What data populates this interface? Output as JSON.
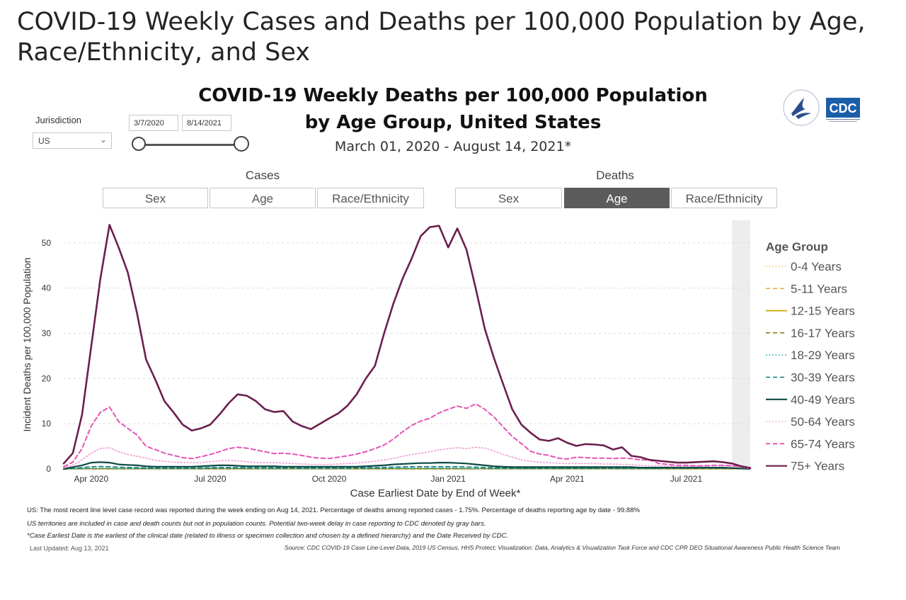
{
  "page": {
    "title_line1": "COVID-19 Weekly Cases and Deaths per 100,000 Population by Age,",
    "title_line2": "Race/Ethnicity, and Sex"
  },
  "filters": {
    "jurisdiction_label": "Jurisdiction",
    "jurisdiction_value": "US",
    "date_start": "3/7/2020",
    "date_end": "8/14/2021"
  },
  "toggles": {
    "cases_label": "Cases",
    "deaths_label": "Deaths",
    "cases_buttons": [
      "Sex",
      "Age",
      "Race/Ethnicity"
    ],
    "deaths_buttons": [
      "Sex",
      "Age",
      "Race/Ethnicity"
    ],
    "active_deaths_button": "Age"
  },
  "logos": {
    "cdc_text": "CDC"
  },
  "chart_data": {
    "type": "line",
    "title_line1": "COVID-19 Weekly Deaths per 100,000 Population",
    "title_line2": "by Age Group, United States",
    "subtitle": "March 01, 2020 - August 14, 2021*",
    "xlabel": "Case Earliest Date by End of Week*",
    "ylabel": "Incident Deaths per 100,000 Population",
    "ylim": [
      0,
      55
    ],
    "yticks": [
      0,
      10,
      20,
      30,
      40,
      50
    ],
    "x_tick_labels": [
      "Apr 2020",
      "Jul 2020",
      "Oct 2020",
      "Jan 2021",
      "Apr 2021",
      "Jul 2021"
    ],
    "x_tick_weeks": [
      3,
      16,
      29,
      42,
      55,
      68
    ],
    "week_count": 76,
    "grey_band_from_week": 73,
    "legend_title": "Age Group",
    "series": [
      {
        "name": "0-4 Years",
        "color": "#e8c34d",
        "dash": "dot",
        "width": 1.5,
        "values": [
          0,
          0.05,
          0.05,
          0.05,
          0.05,
          0.05,
          0.05,
          0.05,
          0.05,
          0.05,
          0.05,
          0.05,
          0.05,
          0.05,
          0.05,
          0.05,
          0.05,
          0.05,
          0.05,
          0.05,
          0.05,
          0.05,
          0.05,
          0.05,
          0.05,
          0.05,
          0.05,
          0.05,
          0.05,
          0.05,
          0.05,
          0.05,
          0.05,
          0.05,
          0.05,
          0.05,
          0.05,
          0.05,
          0.05,
          0.05,
          0.05,
          0.05,
          0.05,
          0.05,
          0.05,
          0.05,
          0.05,
          0.05,
          0.05,
          0.05,
          0.05,
          0.05,
          0.05,
          0.05,
          0.05,
          0.05,
          0.05,
          0.05,
          0.05,
          0.05,
          0.05,
          0.05,
          0.05,
          0.05,
          0.05,
          0.05,
          0.05,
          0.05,
          0.05,
          0.05,
          0.05,
          0.05,
          0.05,
          0.05,
          0.05,
          0
        ]
      },
      {
        "name": "5-11 Years",
        "color": "#e8a838",
        "dash": "dash",
        "width": 1.5,
        "values": [
          0,
          0.03,
          0.03,
          0.03,
          0.03,
          0.03,
          0.03,
          0.03,
          0.03,
          0.03,
          0.03,
          0.03,
          0.03,
          0.03,
          0.03,
          0.03,
          0.03,
          0.03,
          0.03,
          0.03,
          0.03,
          0.03,
          0.03,
          0.03,
          0.03,
          0.03,
          0.03,
          0.03,
          0.03,
          0.03,
          0.03,
          0.03,
          0.03,
          0.03,
          0.03,
          0.03,
          0.03,
          0.03,
          0.03,
          0.03,
          0.03,
          0.03,
          0.03,
          0.03,
          0.03,
          0.03,
          0.03,
          0.03,
          0.03,
          0.03,
          0.03,
          0.03,
          0.03,
          0.03,
          0.03,
          0.03,
          0.03,
          0.03,
          0.03,
          0.03,
          0.03,
          0.03,
          0.03,
          0.03,
          0.03,
          0.03,
          0.03,
          0.03,
          0.03,
          0.03,
          0.03,
          0.03,
          0.03,
          0.03,
          0.03,
          0
        ]
      },
      {
        "name": "12-15 Years",
        "color": "#c9a500",
        "dash": "solid",
        "width": 1.8,
        "values": [
          0,
          0.04,
          0.04,
          0.04,
          0.04,
          0.04,
          0.04,
          0.04,
          0.04,
          0.04,
          0.04,
          0.04,
          0.04,
          0.04,
          0.04,
          0.04,
          0.04,
          0.04,
          0.04,
          0.04,
          0.04,
          0.04,
          0.04,
          0.04,
          0.04,
          0.04,
          0.04,
          0.04,
          0.04,
          0.04,
          0.04,
          0.04,
          0.04,
          0.04,
          0.04,
          0.04,
          0.04,
          0.04,
          0.04,
          0.04,
          0.04,
          0.04,
          0.04,
          0.04,
          0.04,
          0.04,
          0.04,
          0.04,
          0.04,
          0.04,
          0.04,
          0.04,
          0.04,
          0.04,
          0.04,
          0.04,
          0.04,
          0.04,
          0.04,
          0.04,
          0.04,
          0.04,
          0.04,
          0.04,
          0.04,
          0.04,
          0.04,
          0.04,
          0.04,
          0.04,
          0.04,
          0.04,
          0.04,
          0.04,
          0.04,
          0
        ]
      },
      {
        "name": "16-17 Years",
        "color": "#8a6d0b",
        "dash": "dash",
        "width": 1.5,
        "values": [
          0,
          0.05,
          0.05,
          0.05,
          0.05,
          0.05,
          0.05,
          0.05,
          0.05,
          0.05,
          0.05,
          0.05,
          0.05,
          0.05,
          0.05,
          0.05,
          0.05,
          0.05,
          0.05,
          0.05,
          0.05,
          0.05,
          0.05,
          0.05,
          0.05,
          0.05,
          0.05,
          0.05,
          0.05,
          0.05,
          0.05,
          0.05,
          0.05,
          0.05,
          0.05,
          0.05,
          0.05,
          0.05,
          0.05,
          0.05,
          0.05,
          0.05,
          0.05,
          0.05,
          0.05,
          0.05,
          0.05,
          0.05,
          0.05,
          0.05,
          0.05,
          0.05,
          0.05,
          0.05,
          0.05,
          0.05,
          0.05,
          0.05,
          0.05,
          0.05,
          0.05,
          0.05,
          0.05,
          0.05,
          0.05,
          0.05,
          0.05,
          0.05,
          0.05,
          0.05,
          0.05,
          0.05,
          0.05,
          0.05,
          0.05,
          0
        ]
      },
      {
        "name": "18-29 Years",
        "color": "#1aa7a7",
        "dash": "dot",
        "width": 1.6,
        "values": [
          0,
          0.05,
          0.1,
          0.15,
          0.15,
          0.15,
          0.12,
          0.1,
          0.1,
          0.08,
          0.08,
          0.08,
          0.08,
          0.08,
          0.1,
          0.12,
          0.15,
          0.15,
          0.15,
          0.12,
          0.12,
          0.12,
          0.1,
          0.1,
          0.1,
          0.1,
          0.1,
          0.1,
          0.1,
          0.1,
          0.1,
          0.1,
          0.12,
          0.12,
          0.14,
          0.15,
          0.16,
          0.18,
          0.18,
          0.18,
          0.18,
          0.18,
          0.18,
          0.16,
          0.14,
          0.12,
          0.1,
          0.1,
          0.1,
          0.1,
          0.1,
          0.1,
          0.1,
          0.1,
          0.1,
          0.1,
          0.1,
          0.1,
          0.1,
          0.1,
          0.1,
          0.1,
          0.1,
          0.1,
          0.1,
          0.1,
          0.1,
          0.12,
          0.12,
          0.14,
          0.14,
          0.14,
          0.12,
          0.1,
          0.08,
          0
        ]
      },
      {
        "name": "30-39 Years",
        "color": "#127a7a",
        "dash": "dash",
        "width": 1.6,
        "values": [
          0,
          0.1,
          0.3,
          0.5,
          0.55,
          0.5,
          0.4,
          0.35,
          0.3,
          0.25,
          0.2,
          0.2,
          0.2,
          0.2,
          0.2,
          0.25,
          0.3,
          0.35,
          0.35,
          0.3,
          0.3,
          0.3,
          0.3,
          0.3,
          0.25,
          0.25,
          0.25,
          0.25,
          0.25,
          0.25,
          0.25,
          0.25,
          0.25,
          0.3,
          0.3,
          0.35,
          0.4,
          0.45,
          0.5,
          0.5,
          0.5,
          0.5,
          0.5,
          0.5,
          0.45,
          0.4,
          0.35,
          0.3,
          0.25,
          0.2,
          0.2,
          0.2,
          0.2,
          0.2,
          0.2,
          0.2,
          0.2,
          0.2,
          0.2,
          0.2,
          0.2,
          0.2,
          0.2,
          0.2,
          0.2,
          0.2,
          0.2,
          0.2,
          0.2,
          0.25,
          0.25,
          0.25,
          0.2,
          0.15,
          0.1,
          0
        ]
      },
      {
        "name": "40-49 Years",
        "color": "#0c4a43",
        "dash": "solid",
        "width": 2.2,
        "values": [
          0,
          0.4,
          0.8,
          1.4,
          1.5,
          1.4,
          1.0,
          0.9,
          0.8,
          0.6,
          0.5,
          0.5,
          0.5,
          0.5,
          0.5,
          0.6,
          0.7,
          0.8,
          0.8,
          0.7,
          0.6,
          0.6,
          0.6,
          0.6,
          0.5,
          0.5,
          0.5,
          0.5,
          0.5,
          0.5,
          0.5,
          0.5,
          0.5,
          0.6,
          0.7,
          0.8,
          1.0,
          1.1,
          1.2,
          1.3,
          1.3,
          1.4,
          1.4,
          1.3,
          1.2,
          1.0,
          0.8,
          0.6,
          0.5,
          0.4,
          0.4,
          0.4,
          0.4,
          0.4,
          0.4,
          0.4,
          0.4,
          0.4,
          0.4,
          0.4,
          0.4,
          0.4,
          0.4,
          0.3,
          0.3,
          0.3,
          0.3,
          0.3,
          0.3,
          0.3,
          0.3,
          0.3,
          0.3,
          0.2,
          0.1,
          0
        ]
      },
      {
        "name": "50-64 Years",
        "color": "#f0a8d8",
        "dash": "dot",
        "width": 1.8,
        "values": [
          0.3,
          0.8,
          2.0,
          3.5,
          4.5,
          4.7,
          3.8,
          3.2,
          2.8,
          2.4,
          1.9,
          1.7,
          1.5,
          1.4,
          1.4,
          1.4,
          1.6,
          1.8,
          1.9,
          1.8,
          1.6,
          1.4,
          1.4,
          1.4,
          1.3,
          1.2,
          1.1,
          1.0,
          1.0,
          1.0,
          1.1,
          1.2,
          1.3,
          1.5,
          1.7,
          2.0,
          2.3,
          2.8,
          3.2,
          3.5,
          3.8,
          4.2,
          4.5,
          4.7,
          4.5,
          4.8,
          4.6,
          4.0,
          3.2,
          2.6,
          2.0,
          1.7,
          1.5,
          1.4,
          1.3,
          1.2,
          1.2,
          1.2,
          1.2,
          1.1,
          1.1,
          1.0,
          1.0,
          0.8,
          0.7,
          0.7,
          0.6,
          0.6,
          0.6,
          0.6,
          0.7,
          0.7,
          0.7,
          0.6,
          0.4,
          0
        ]
      },
      {
        "name": "65-74 Years",
        "color": "#e455b4",
        "dash": "dash",
        "width": 2.0,
        "values": [
          0.5,
          1.5,
          4.5,
          9.5,
          12.5,
          13.7,
          10.5,
          9.0,
          7.5,
          5.0,
          4.3,
          3.5,
          3.0,
          2.5,
          2.3,
          2.7,
          3.2,
          3.8,
          4.5,
          4.8,
          4.6,
          4.2,
          3.8,
          3.4,
          3.5,
          3.3,
          3.0,
          2.6,
          2.4,
          2.3,
          2.6,
          2.9,
          3.3,
          3.8,
          4.5,
          5.3,
          6.6,
          8.2,
          9.6,
          10.6,
          11.2,
          12.4,
          13.2,
          13.9,
          13.4,
          14.4,
          13.2,
          11.5,
          9.3,
          7.2,
          5.6,
          3.9,
          3.3,
          3.0,
          2.4,
          2.2,
          2.6,
          2.5,
          2.4,
          2.4,
          2.3,
          2.4,
          2.3,
          2.0,
          2.0,
          1.2,
          1.0,
          0.8,
          0.8,
          0.7,
          0.7,
          0.8,
          0.8,
          0.7,
          0.5,
          0.1
        ]
      },
      {
        "name": "75+ Years",
        "color": "#6b1f4e",
        "dash": "solid",
        "width": 2.6,
        "values": [
          1.2,
          3.5,
          12.0,
          27.0,
          42.0,
          54.0,
          49.0,
          43.5,
          34.5,
          24.2,
          19.8,
          15.0,
          12.5,
          9.8,
          8.5,
          9.0,
          9.8,
          12.0,
          14.5,
          16.5,
          16.2,
          15.0,
          13.2,
          12.6,
          12.8,
          10.5,
          9.5,
          8.8,
          10.0,
          11.2,
          12.3,
          14.0,
          16.5,
          20.0,
          22.8,
          30.0,
          36.5,
          42.0,
          46.5,
          51.5,
          53.5,
          53.8,
          49.0,
          53.2,
          48.5,
          40.0,
          31.0,
          24.5,
          18.8,
          13.2,
          9.8,
          8.0,
          6.5,
          6.2,
          6.8,
          5.8,
          5.1,
          5.5,
          5.4,
          5.2,
          4.3,
          4.8,
          2.9,
          2.6,
          2.0,
          1.8,
          1.6,
          1.4,
          1.4,
          1.5,
          1.6,
          1.7,
          1.5,
          1.2,
          0.6,
          0.2
        ]
      }
    ]
  },
  "footnotes": {
    "line1": "US: The most recent line level case record was reported during the week ending on Aug 14, 2021. Percentage of deaths among reported cases - 1.75%. Percentage of deaths reporting age by date - 99.88%",
    "line2": "US territories are included in case and death counts but not in population counts. Potential two-week delay in case reporting to CDC denoted by gray bars.",
    "line3": "*Case Earliest Date is the earliest of the clinical date (related to illness or specimen collection and chosen by a defined hierarchy) and the Date Received by CDC.",
    "last_updated": "Last Updated: Aug 13, 2021",
    "source": "Source: CDC COVID-19 Case Line-Level Data, 2019 US Census, HHS Protect; Visualization: Data, Analytics & Visualization Task Force and CDC CPR DEO Situational Awareness Public Health Science Team"
  }
}
